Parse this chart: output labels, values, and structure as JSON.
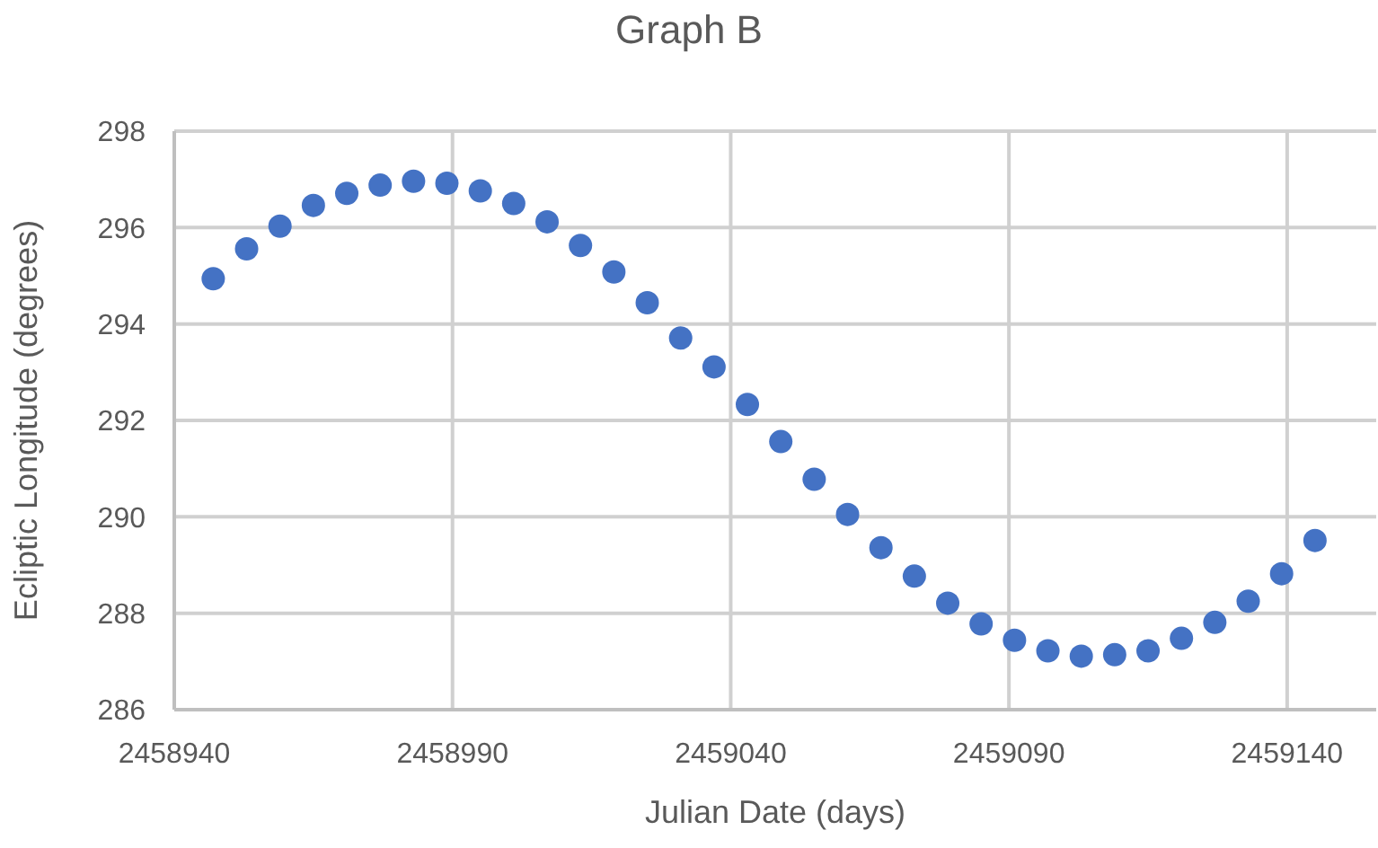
{
  "chart_data": {
    "type": "scatter",
    "title": "Graph B",
    "xlabel": "Julian Date (days)",
    "ylabel": "Ecliptic Longitude (degrees)",
    "x": [
      2458947,
      2458953,
      2458959,
      2458965,
      2458971,
      2458977,
      2458983,
      2458989,
      2458995,
      2459001,
      2459007,
      2459013,
      2459019,
      2459025,
      2459031,
      2459037,
      2459043,
      2459049,
      2459055,
      2459061,
      2459067,
      2459073,
      2459079,
      2459085,
      2459091,
      2459097,
      2459103,
      2459109,
      2459115,
      2459121,
      2459127,
      2459133,
      2459139,
      2459145
    ],
    "series": [
      {
        "color": "#4472c4",
        "values": [
          294.94,
          295.56,
          296.03,
          296.46,
          296.71,
          296.88,
          296.96,
          296.92,
          296.76,
          296.5,
          296.12,
          295.63,
          295.08,
          294.44,
          293.71,
          293.11,
          292.33,
          291.56,
          290.78,
          290.05,
          289.36,
          288.77,
          288.21,
          287.78,
          287.44,
          287.22,
          287.11,
          287.14,
          287.22,
          287.48,
          287.81,
          288.25,
          288.82,
          289.51
        ]
      }
    ],
    "xlim": [
      2458940,
      2459156
    ],
    "xticks": [
      2458940,
      2458990,
      2459040,
      2459090,
      2459140
    ],
    "ylim": [
      286,
      298
    ],
    "yticks": [
      286,
      288,
      290,
      292,
      294,
      296,
      298
    ],
    "grid": true,
    "legend": false,
    "marker": "circle"
  }
}
